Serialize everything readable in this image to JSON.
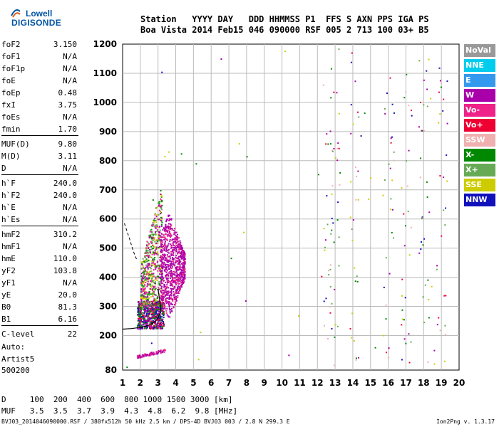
{
  "logo": {
    "line1": "Lowell",
    "line2": "DIGISONDE"
  },
  "header": {
    "line1": "Station   YYYY DAY   DDD HHMMSS P1  FFS S AXN PPS IGA PS",
    "line2": "Boa Vista 2014 Feb15 046 090000 RSF 005 2 713 100 03+ B5"
  },
  "params": [
    {
      "key": "foF2",
      "value": "3.150"
    },
    {
      "key": "foF1",
      "value": "N/A"
    },
    {
      "key": "foF1p",
      "value": "N/A"
    },
    {
      "key": "foE",
      "value": "N/A"
    },
    {
      "key": "foEp",
      "value": "0.48"
    },
    {
      "key": "fxI",
      "value": "3.75"
    },
    {
      "key": "foEs",
      "value": "N/A"
    },
    {
      "key": "fmin",
      "value": "1.70"
    },
    {
      "key": "MUF(D)",
      "value": "9.80"
    },
    {
      "key": "M(D)",
      "value": "3.11"
    },
    {
      "key": "D",
      "value": "N/A"
    },
    {
      "key": "h`F",
      "value": "240.0"
    },
    {
      "key": "h`F2",
      "value": "240.0"
    },
    {
      "key": "h`E",
      "value": "N/A"
    },
    {
      "key": "h`Es",
      "value": "N/A"
    },
    {
      "key": "hmF2",
      "value": "310.2"
    },
    {
      "key": "hmF1",
      "value": "N/A"
    },
    {
      "key": "hmE",
      "value": "110.0"
    },
    {
      "key": "yF2",
      "value": "103.8"
    },
    {
      "key": "yF1",
      "value": "N/A"
    },
    {
      "key": "yE",
      "value": "20.0"
    },
    {
      "key": "B0",
      "value": "81.3"
    },
    {
      "key": "B1",
      "value": "6.16"
    },
    {
      "key": "C-level",
      "value": "22"
    }
  ],
  "auto": {
    "line1": "Auto:",
    "line2": "Artist5",
    "line3": "500200"
  },
  "legend": [
    {
      "label": "NoVal",
      "color": "#999999"
    },
    {
      "label": "NNE",
      "color": "#00ccee"
    },
    {
      "label": "E",
      "color": "#3399ee"
    },
    {
      "label": "W",
      "color": "#aa00aa"
    },
    {
      "label": "Vo-",
      "color": "#ee2288"
    },
    {
      "label": "Vo+",
      "color": "#ee0033"
    },
    {
      "label": "SSW",
      "color": "#f0b0b0"
    },
    {
      "label": "X-",
      "color": "#008800"
    },
    {
      "label": "X+",
      "color": "#66aa55"
    },
    {
      "label": "SSE",
      "color": "#cccc00"
    },
    {
      "label": "NNW",
      "color": "#1111bb"
    }
  ],
  "mufTable": {
    "line1": "D     100  200  400  600  800 1000 1500 3000 [km]",
    "line2": "MUF   3.5  3.5  3.7  3.9  4.3  4.8  6.2  9.8 [MHz]"
  },
  "footer": {
    "left": "BVJ03_2014046090000.RSF / 380fx512h 50 kHz 2.5 km / DPS-4D BVJ03 003 / 2.8 N 299.3 E",
    "right": "Ion2Png v. 1.3.17"
  },
  "chart_data": {
    "type": "scatter",
    "xlim": [
      1,
      20
    ],
    "ylim": [
      80,
      1200
    ],
    "x_ticks": [
      1,
      2,
      3,
      4,
      5,
      6,
      7,
      8,
      9,
      10,
      11,
      12,
      13,
      14,
      15,
      16,
      17,
      18,
      19,
      20
    ],
    "y_ticks": [
      80,
      200,
      300,
      400,
      500,
      600,
      700,
      800,
      900,
      1000,
      1100,
      1200
    ],
    "grid": true,
    "legend_position": "right",
    "trace_profile": [
      [
        1.0,
        222
      ],
      [
        1.5,
        224
      ],
      [
        2.0,
        228
      ],
      [
        2.4,
        234
      ],
      [
        2.7,
        242
      ],
      [
        2.9,
        252
      ],
      [
        3.0,
        262
      ],
      [
        3.1,
        275
      ],
      [
        3.15,
        295
      ],
      [
        3.1,
        320
      ],
      [
        3.0,
        360
      ]
    ],
    "trace_dashed": [
      [
        1.1,
        585
      ],
      [
        1.4,
        530
      ],
      [
        1.6,
        490
      ],
      [
        1.8,
        460
      ]
    ],
    "echo_regions": [
      {
        "name": "F trace",
        "x": [
          1.8,
          3.3
        ],
        "y": [
          225,
          320
        ],
        "colors": [
          "#aa00aa",
          "#008800",
          "#ee0033",
          "#1111bb"
        ]
      },
      {
        "name": "F2 spread",
        "x": [
          2.0,
          3.2
        ],
        "y": [
          300,
          720
        ],
        "colors": [
          "#ee2288",
          "#008800",
          "#66aa55",
          "#aa00aa",
          "#cccc00"
        ]
      },
      {
        "name": "W spread",
        "x": [
          3.1,
          4.5
        ],
        "y": [
          250,
          620
        ],
        "colors": [
          "#aa00aa",
          "#aa00aa",
          "#aa00aa",
          "#ee2288"
        ]
      },
      {
        "name": "Lower echo",
        "x": [
          1.8,
          3.4
        ],
        "y": [
          130,
          155
        ],
        "colors": [
          "#aa00aa",
          "#ee2288"
        ]
      }
    ],
    "noise_columns": [
      12.5,
      13.0,
      14.0,
      16.0,
      17.0,
      18.0,
      19.0
    ]
  }
}
